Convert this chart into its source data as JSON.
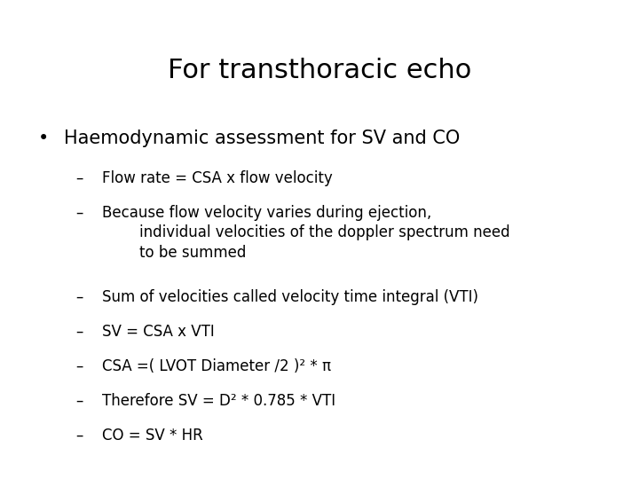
{
  "title": "For transthoracic echo",
  "title_fontsize": 22,
  "background_color": "#ffffff",
  "text_color": "#000000",
  "bullet_text": "Haemodynamic assessment for SV and CO",
  "bullet_fontsize": 15,
  "sub_items": [
    "Flow rate = CSA x flow velocity",
    "Because flow velocity varies during ejection,\n        individual velocities of the doppler spectrum need\n        to be summed",
    "Sum of velocities called velocity time integral (VTI)",
    "SV = CSA x VTI",
    "CSA =( LVOT Diameter /2 )² * π",
    "Therefore SV = D² * 0.785 * VTI",
    "CO = SV * HR"
  ],
  "sub_fontsize": 12,
  "dash": "– ",
  "bullet": "•",
  "font_family": "DejaVu Sans"
}
